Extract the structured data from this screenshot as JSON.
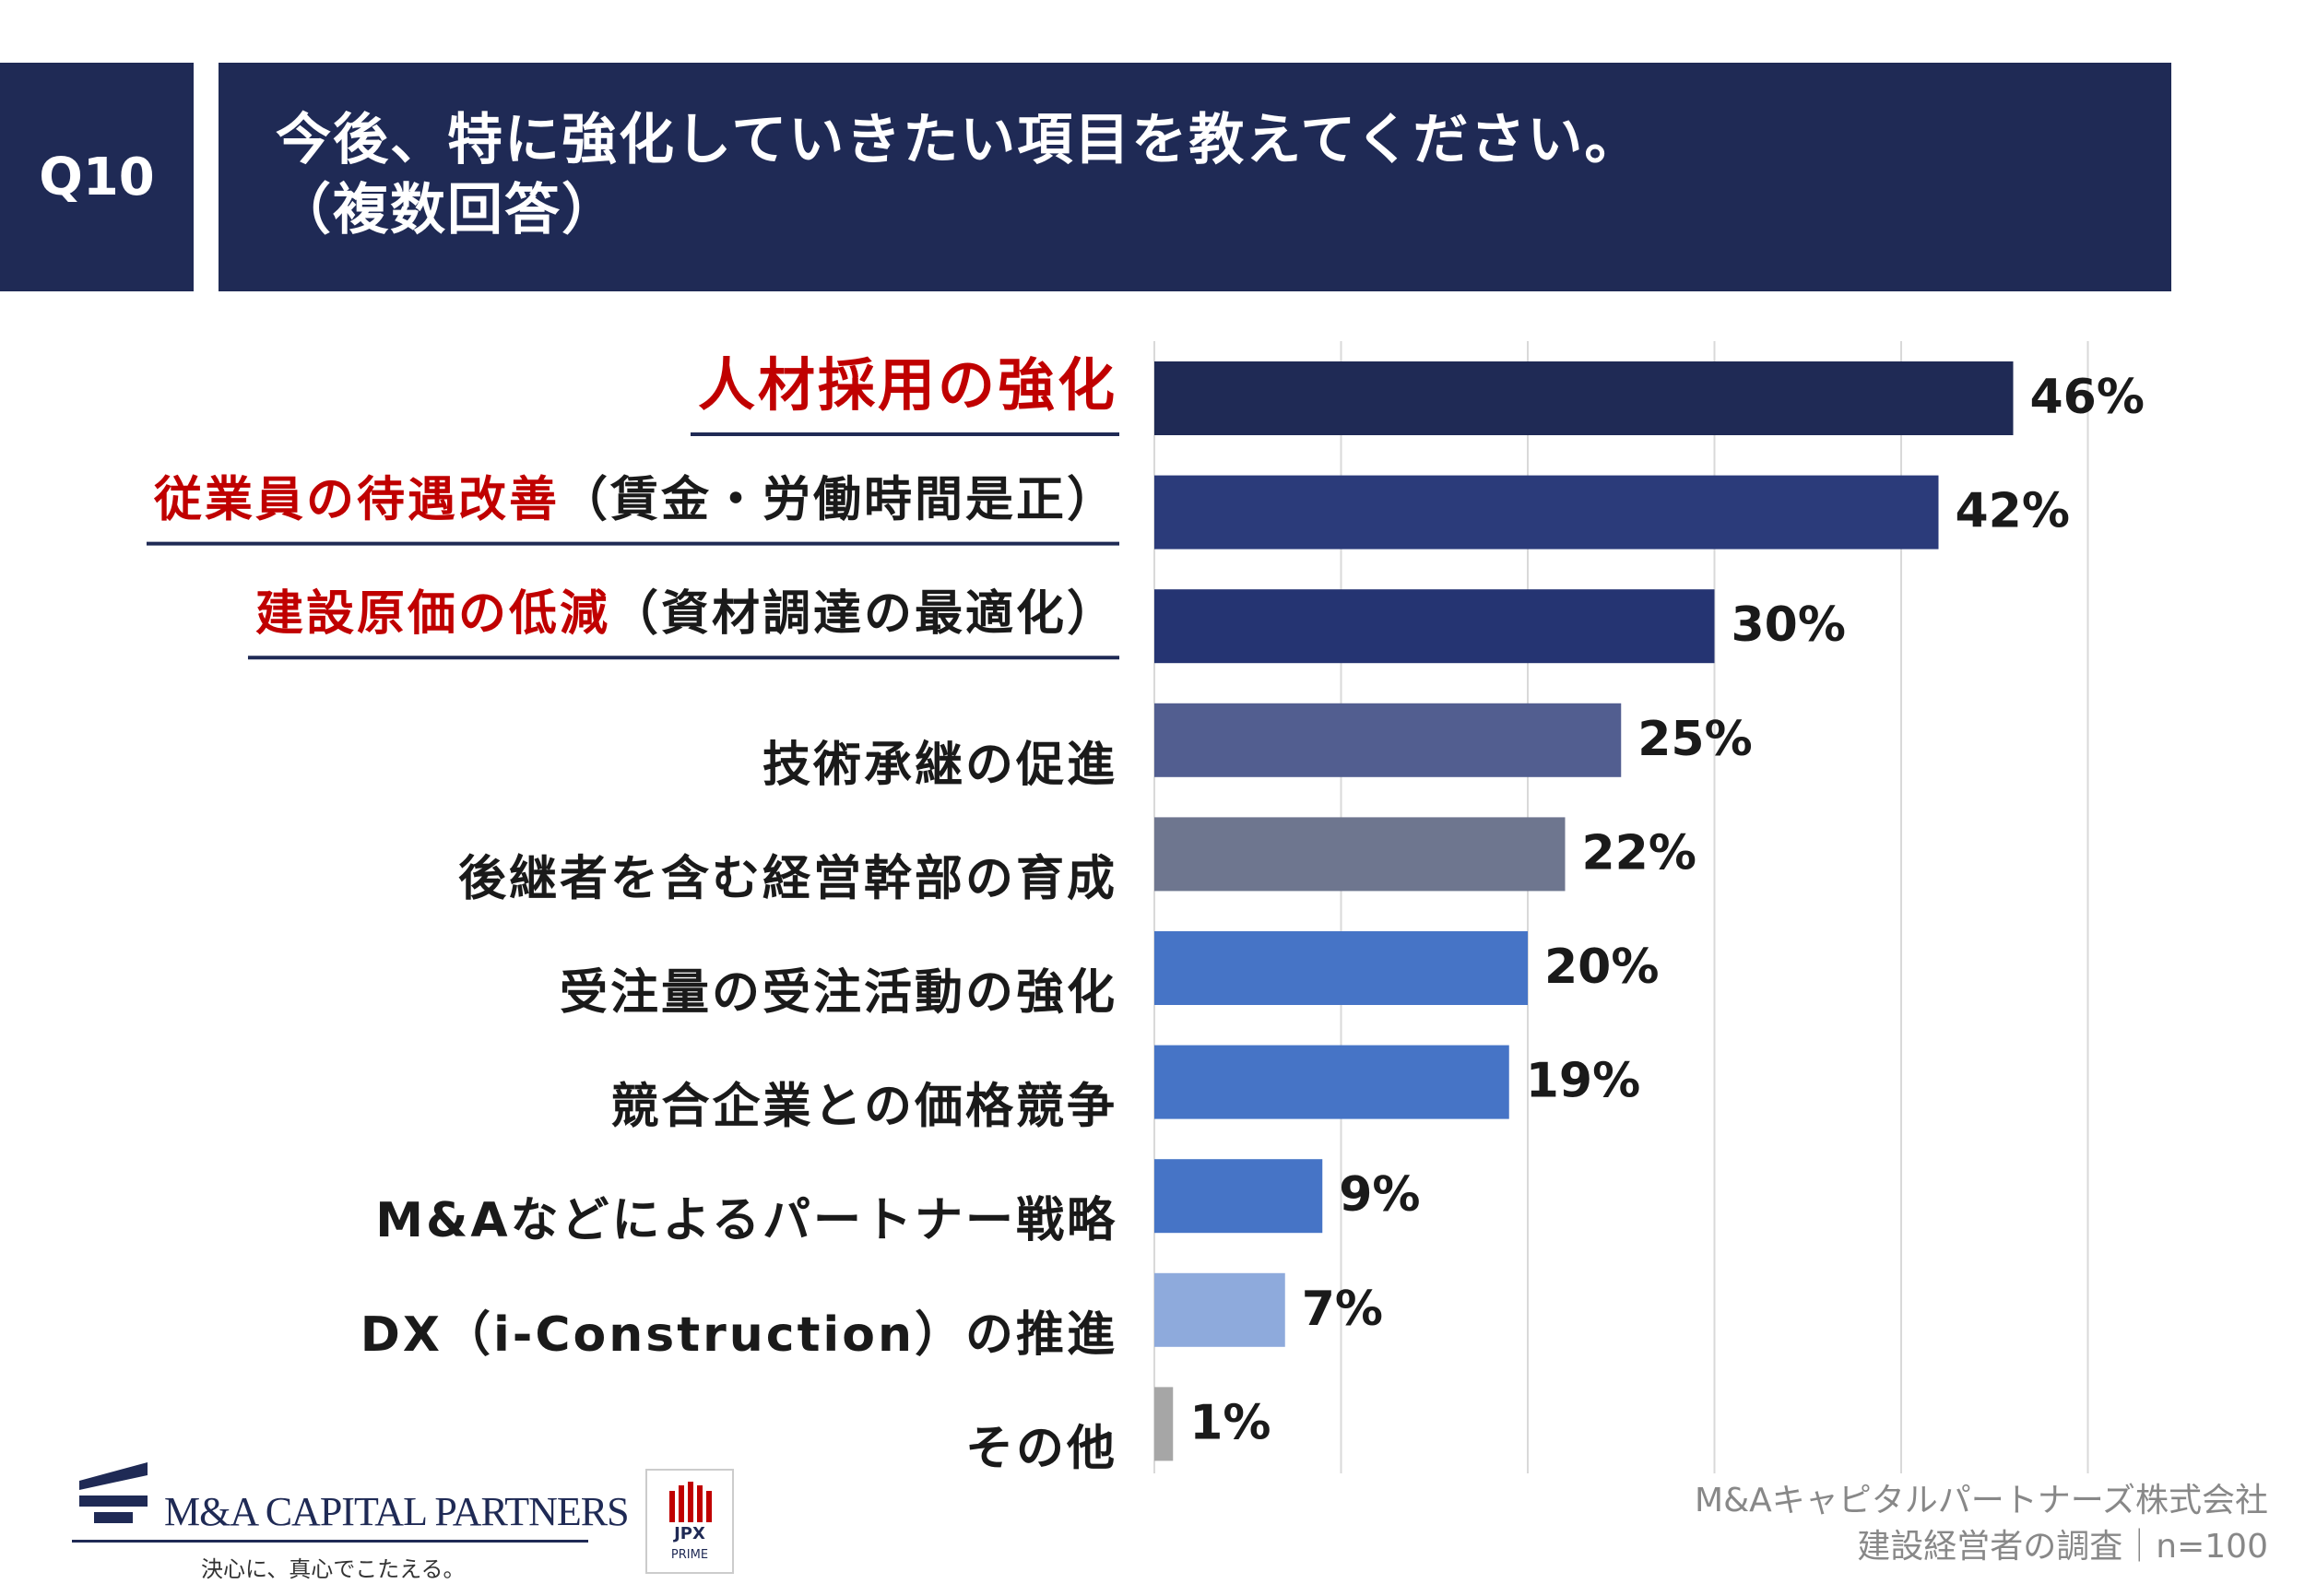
{
  "header": {
    "question_number": "Q10",
    "title_line1": "今後、特に強化していきたい項目を教えてください。",
    "title_line2": "（複数回答）"
  },
  "colors": {
    "header_bg": "#1f2a55",
    "highlight_red": "#c00000",
    "underline": "#1f2a55",
    "grid": "#d9d9d9"
  },
  "chart_data": {
    "type": "bar",
    "orientation": "horizontal",
    "xlim": [
      0,
      50
    ],
    "grid": true,
    "value_suffix": "%",
    "categories": [
      {
        "highlight": "人材採用の強化",
        "rest": "",
        "value": 46,
        "color": "#1f2a55",
        "underline": true
      },
      {
        "highlight": "従業員の待遇改善",
        "rest": "（賃金・労働時間是正）",
        "value": 42,
        "color": "#2b3b7a",
        "underline": true
      },
      {
        "highlight": "建設原価の低減",
        "rest": "（資材調達の最適化）",
        "value": 30,
        "color": "#253472",
        "underline": true
      },
      {
        "highlight": "",
        "rest": "技術承継の促進",
        "value": 25,
        "color": "#525e90",
        "underline": false
      },
      {
        "highlight": "",
        "rest": "後継者を含む経営幹部の育成",
        "value": 22,
        "color": "#6e768f",
        "underline": false
      },
      {
        "highlight": "",
        "rest": "受注量の受注活動の強化",
        "value": 20,
        "color": "#4674c6",
        "underline": false
      },
      {
        "highlight": "",
        "rest": "競合企業との価格競争",
        "value": 19,
        "color": "#4674c6",
        "underline": false
      },
      {
        "highlight": "",
        "rest": "M&Aなどによるパートナー戦略",
        "value": 9,
        "color": "#4674c6",
        "underline": false
      },
      {
        "highlight": "",
        "rest": "DX（i-Construction）の推進",
        "value": 7,
        "color": "#8eaadc",
        "underline": false
      },
      {
        "highlight": "",
        "rest": "その他",
        "value": 1,
        "color": "#a6a6a6",
        "underline": false
      }
    ]
  },
  "footer": {
    "logo_name": "M&A CAPITAL PARTNERS",
    "logo_tagline": "決心に、真心でこたえる。",
    "jpx_label": "JPX",
    "jpx_sub": "PRIME",
    "source_line1": "M&Aキャピタルパートナーズ株式会社",
    "source_line2": "建設経営者の調査｜n=100"
  }
}
